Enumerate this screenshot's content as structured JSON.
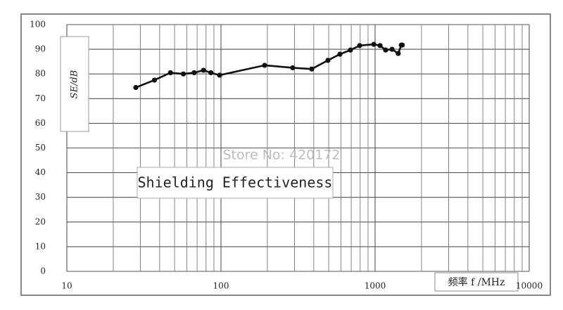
{
  "chart_data": {
    "type": "line",
    "title": "Shielding Effectiveness",
    "watermark": "Store No: 420172",
    "ylabel": "SE/dB",
    "xlabel": "频率 f /MHz",
    "x": [
      28,
      37,
      47,
      57,
      67,
      77,
      86,
      98,
      192,
      292,
      388,
      494,
      591,
      692,
      794,
      980,
      1077,
      1170,
      1288,
      1413,
      1480,
      1500
    ],
    "series": [
      {
        "color": "#111111",
        "values": [
          74.5,
          77.5,
          80.5,
          80,
          80.5,
          81.5,
          80.5,
          79.5,
          83.5,
          82.5,
          82,
          85.5,
          88,
          89.7,
          91.5,
          92,
          91.5,
          89.7,
          90,
          88.3,
          91.7,
          91.7
        ]
      }
    ],
    "xlim": [
      10,
      10000
    ],
    "xticks": [
      10,
      100,
      1000,
      10000
    ],
    "xscale": "log",
    "ylim": [
      0,
      100
    ],
    "yticks": [
      0,
      10,
      20,
      30,
      40,
      50,
      60,
      70,
      80,
      90,
      100
    ],
    "grid": true
  }
}
